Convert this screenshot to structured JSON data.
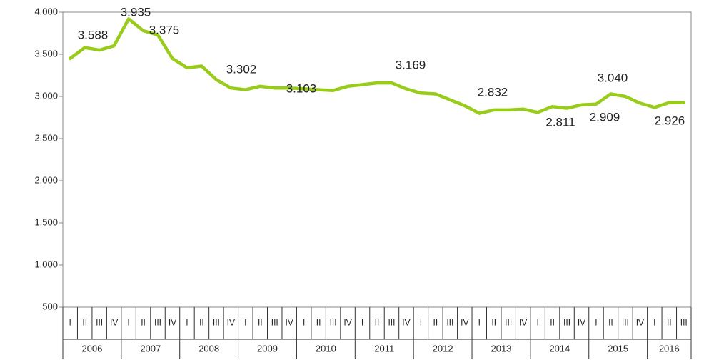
{
  "chart_data": {
    "type": "line",
    "categories": [
      "I",
      "II",
      "III",
      "IV",
      "I",
      "II",
      "III",
      "IV",
      "I",
      "II",
      "III",
      "IV",
      "I",
      "II",
      "III",
      "IV",
      "I",
      "II",
      "III",
      "IV",
      "I",
      "II",
      "III",
      "IV",
      "I",
      "II",
      "III",
      "IV",
      "I",
      "II",
      "III",
      "IV",
      "I",
      "II",
      "III",
      "IV",
      "I",
      "II",
      "III",
      "IV",
      "I",
      "II",
      "III"
    ],
    "years": [
      "2006",
      "2007",
      "2008",
      "2009",
      "2010",
      "2011",
      "2012",
      "2013",
      "2014",
      "2015",
      "2016"
    ],
    "series": [
      {
        "color": "#99cc1a",
        "values": [
          3450,
          3580,
          3550,
          3600,
          3920,
          3780,
          3730,
          3450,
          3340,
          3360,
          3200,
          3100,
          3080,
          3120,
          3100,
          3100,
          3090,
          3080,
          3070,
          3120,
          3140,
          3160,
          3160,
          3090,
          3040,
          3030,
          2960,
          2890,
          2800,
          2840,
          2840,
          2850,
          2811,
          2880,
          2860,
          2900,
          2909,
          3030,
          3000,
          2920,
          2870,
          2926,
          2926
        ]
      }
    ],
    "annotations": [
      "3.588",
      "3.935",
      "3.375",
      "3.302",
      "3.103",
      "3.169",
      "2.832",
      "2.811",
      "3.040",
      "2.909",
      "2.926"
    ],
    "ylim": [
      500,
      4000
    ],
    "yticks": [
      {
        "value": 500,
        "label": "500"
      },
      {
        "value": 1000,
        "label": "1.000"
      },
      {
        "value": 1500,
        "label": "1.500"
      },
      {
        "value": 2000,
        "label": "2.000"
      },
      {
        "value": 2500,
        "label": "2.500"
      },
      {
        "value": 3000,
        "label": "3.000"
      },
      {
        "value": 3500,
        "label": "3.500"
      },
      {
        "value": 4000,
        "label": "4.000"
      }
    ],
    "grid": false
  }
}
